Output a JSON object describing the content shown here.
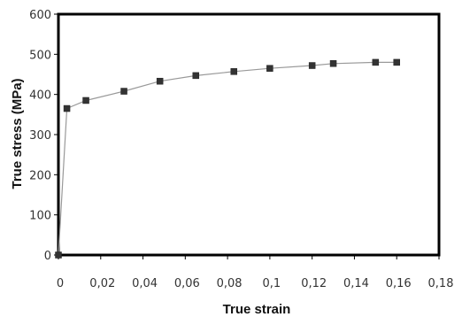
{
  "chart_data": {
    "type": "line",
    "title": "",
    "xlabel": "True strain",
    "ylabel": "True stress (MPa)",
    "xlim": [
      0,
      0.18
    ],
    "ylim": [
      0,
      600
    ],
    "x_ticks": [
      "0",
      "0,02",
      "0,04",
      "0,06",
      "0,08",
      "0,1",
      "0,12",
      "0,14",
      "0,16",
      "0,18"
    ],
    "x_tick_values": [
      0,
      0.02,
      0.04,
      0.06,
      0.08,
      0.1,
      0.12,
      0.14,
      0.16,
      0.18
    ],
    "y_ticks": [
      "0",
      "100",
      "200",
      "300",
      "400",
      "500",
      "600"
    ],
    "y_tick_values": [
      0,
      100,
      200,
      300,
      400,
      500,
      600
    ],
    "grid": false,
    "legend": "none",
    "series": [
      {
        "marker": "square",
        "color": "#333333",
        "line_color": "#999999",
        "points": [
          {
            "x": 0,
            "y": 0
          },
          {
            "x": 0.004,
            "y": 365
          },
          {
            "x": 0.013,
            "y": 385
          },
          {
            "x": 0.031,
            "y": 408
          },
          {
            "x": 0.048,
            "y": 433
          },
          {
            "x": 0.065,
            "y": 447
          },
          {
            "x": 0.083,
            "y": 457
          },
          {
            "x": 0.1,
            "y": 465
          },
          {
            "x": 0.12,
            "y": 472
          },
          {
            "x": 0.13,
            "y": 477
          },
          {
            "x": 0.15,
            "y": 480
          },
          {
            "x": 0.16,
            "y": 480
          }
        ]
      }
    ]
  }
}
